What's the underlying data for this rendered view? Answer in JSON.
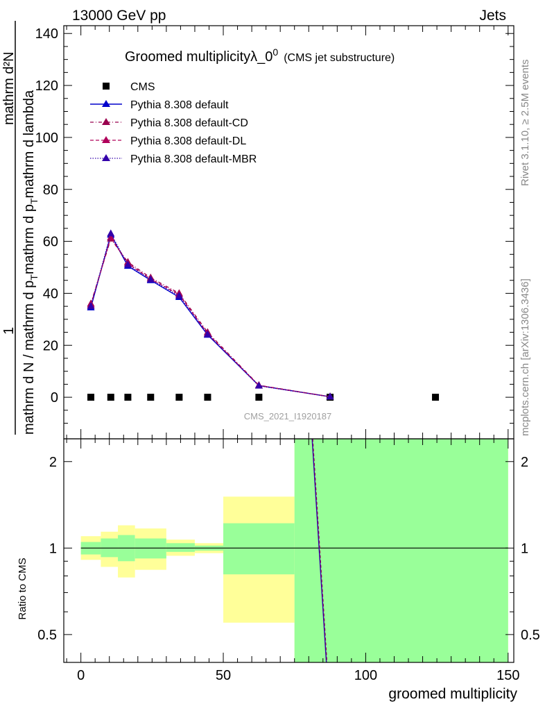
{
  "header": {
    "left": "13000 GeV pp",
    "right": "Jets"
  },
  "side_labels": {
    "top": "Rivet 3.1.10, ≥ 2.5M events",
    "bottom": "mcplots.cern.ch [arXiv:1306.3436]"
  },
  "watermark": "CMS_2021_I1920187",
  "colors": {
    "data": "#000000",
    "default": "#0000cc",
    "cd": "#99004d",
    "dl": "#b0005a",
    "mbr": "#3300aa",
    "band_inner": "#99ff99",
    "band_outer": "#ffff99"
  },
  "chart_data": [
    {
      "type": "line",
      "title_main": "Groomed multiplicityλ_0",
      "title_sup": "0",
      "title_note": "(CMS jet substructure)",
      "ylabel_num": "1",
      "ylabel_num2": "mathrm d²N",
      "ylabel_den": "mathrm d N / mathrm d p",
      "ylabel_den_sub": "T",
      "ylabel_den2": "mathrm d p",
      "ylabel_den2_sub": "T",
      "ylabel_den3": "mathrm d lambda",
      "ylim": [
        -16,
        143
      ],
      "yticks": [
        0,
        20,
        40,
        60,
        80,
        100,
        120,
        140
      ],
      "xlim": [
        -6,
        152
      ],
      "legend_position": "top-left",
      "series": [
        {
          "name": "CMS",
          "style": "data-square",
          "x": [
            3.5,
            10.5,
            16.5,
            24.5,
            34.5,
            44.5,
            62.5,
            87.5,
            124.5
          ],
          "y": [
            0,
            0,
            0,
            0,
            0,
            0,
            0,
            0,
            0
          ]
        },
        {
          "name": "Pythia 8.308 default",
          "style": "solid",
          "x": [
            3.5,
            10.5,
            16.5,
            24.5,
            34.5,
            44.5,
            62.5,
            87.5
          ],
          "y": [
            34.5,
            62.5,
            50.5,
            45.0,
            38.5,
            24.0,
            4.5,
            0.2
          ]
        },
        {
          "name": "Pythia 8.308 default-CD",
          "style": "dashdot",
          "x": [
            3.5,
            10.5,
            16.5,
            24.5,
            34.5,
            44.5,
            62.5,
            87.5
          ],
          "y": [
            36.0,
            61.0,
            52.0,
            46.0,
            40.0,
            25.0,
            4.6,
            0.2
          ]
        },
        {
          "name": "Pythia 8.308 default-DL",
          "style": "dashed",
          "x": [
            3.5,
            10.5,
            16.5,
            24.5,
            34.5,
            44.5,
            62.5,
            87.5
          ],
          "y": [
            35.5,
            61.5,
            51.5,
            45.5,
            39.5,
            24.5,
            4.5,
            0.2
          ]
        },
        {
          "name": "Pythia 8.308 default-MBR",
          "style": "dotted",
          "x": [
            3.5,
            10.5,
            16.5,
            24.5,
            34.5,
            44.5,
            62.5,
            87.5
          ],
          "y": [
            35.0,
            63.0,
            51.0,
            45.3,
            39.0,
            24.2,
            4.4,
            0.2
          ]
        }
      ]
    },
    {
      "type": "area",
      "ylabel": "Ratio to CMS",
      "xlabel": "groomed multiplicity",
      "log_y": true,
      "ylim": [
        0.4,
        2.4
      ],
      "yticks": [
        0.5,
        1,
        2
      ],
      "xlim": [
        -6,
        152
      ],
      "xticks": [
        0,
        50,
        100,
        150
      ],
      "bands": [
        {
          "x0": 0,
          "x1": 7,
          "inner": [
            0.95,
            1.05
          ],
          "outer": [
            0.91,
            1.1
          ]
        },
        {
          "x0": 7,
          "x1": 13,
          "inner": [
            0.93,
            1.08
          ],
          "outer": [
            0.86,
            1.14
          ]
        },
        {
          "x0": 13,
          "x1": 19,
          "inner": [
            0.9,
            1.11
          ],
          "outer": [
            0.79,
            1.2
          ]
        },
        {
          "x0": 19,
          "x1": 30,
          "inner": [
            0.92,
            1.08
          ],
          "outer": [
            0.84,
            1.17
          ]
        },
        {
          "x0": 30,
          "x1": 40,
          "inner": [
            0.97,
            1.04
          ],
          "outer": [
            0.94,
            1.07
          ]
        },
        {
          "x0": 40,
          "x1": 50,
          "inner": [
            0.98,
            1.02
          ],
          "outer": [
            0.96,
            1.04
          ]
        },
        {
          "x0": 50,
          "x1": 75,
          "inner": [
            0.81,
            1.22
          ],
          "outer": [
            0.55,
            1.51
          ]
        },
        {
          "x0": 75,
          "x1": 150,
          "inner": [
            0.38,
            2.6
          ],
          "outer": [
            0.38,
            2.6
          ]
        }
      ],
      "series": [
        {
          "name": "Pythia 8.308 default",
          "x": [
            81.2,
            86.2
          ],
          "y": [
            2.4,
            0.4
          ]
        }
      ]
    }
  ]
}
